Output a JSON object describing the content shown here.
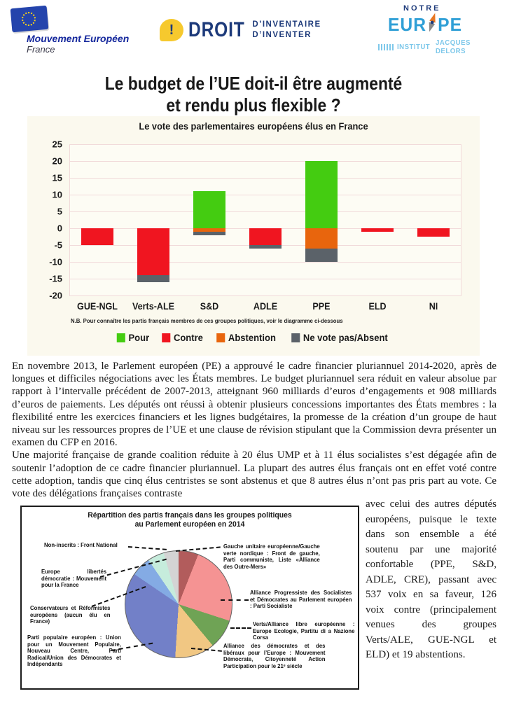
{
  "header": {
    "left_logo": {
      "name": "Mouvement Européen",
      "country": "France"
    },
    "center_logo": {
      "bang": "!",
      "word": "DROIT",
      "sub1": "D’INVENTAIRE",
      "sub2": "D’INVENTER"
    },
    "right_logo": {
      "top": "NOTRE",
      "main_left": "EUR",
      "main_right": "PE",
      "institute": "INSTITUT",
      "institute2": "JACQUES DELORS"
    }
  },
  "title": {
    "line1": "Le budget de l’UE doit-il être augmenté",
    "line2": "et rendu plus flexible ?"
  },
  "chart_data": [
    {
      "type": "bar",
      "title": "Le vote des parlementaires européens élus en France",
      "categories": [
        "GUE-NGL",
        "Verts-ALE",
        "S&D",
        "ADLE",
        "PPE",
        "ELD",
        "NI"
      ],
      "series": [
        {
          "name": "Pour",
          "color": "#44cc11",
          "values": [
            0,
            0,
            11,
            0,
            20,
            0,
            0
          ]
        },
        {
          "name": "Contre",
          "color": "#f01520",
          "values": [
            -5,
            -14,
            0,
            -5,
            0,
            -1,
            -2.5
          ]
        },
        {
          "name": "Abstention",
          "color": "#e8650d",
          "values": [
            0,
            0,
            -1,
            0,
            -6,
            0,
            0
          ]
        },
        {
          "name": "Ne vote pas/Absent",
          "color": "#5b6269",
          "values": [
            0,
            -2,
            -1,
            -1,
            -4,
            0,
            0
          ]
        }
      ],
      "ylim": [
        -20,
        25
      ],
      "ytick_step": 5,
      "grid": true,
      "legend_position": "bottom",
      "note": "N.B. Pour connaître les partis français membres de ces groupes politiques, voir le diagramme ci-dessous"
    },
    {
      "type": "pie",
      "title_line1": "Répartition des partis français dans les groupes politiques",
      "title_line2": "au Parlement européen en 2014",
      "slices": [
        {
          "label": "Gauche unitaire européenne/Gauche verte nordique : Front de gauche, Parti communiste, Liste «Alliance des Outre-Mers»",
          "value": 6,
          "color": "#b25c5c"
        },
        {
          "label": "Alliance Progressiste des Socialistes et Démocrates au Parlement européen : Parti Socialiste",
          "value": 24,
          "color": "#f59393"
        },
        {
          "label": "Verts/Alliance libre européenne : Europe Ecologie, Partitu di a Nazione Corsa",
          "value": 9,
          "color": "#6fa355"
        },
        {
          "label": "Alliance des démocrates et des libéraux pour l’Europe : Mouvement Démocrate, Citoyenneté Action Participation pour le 21ᵉ siècle",
          "value": 12,
          "color": "#f1c783"
        },
        {
          "label": "Parti populaire européen : Union pour un Mouvement Populaire, Nouveau Centre, Parti Radical/Union des Démocrates et Indépendants",
          "value": 33.5,
          "color": "#7280c8"
        },
        {
          "label": "Conservateurs et Réformistes européens (aucun élu en France)",
          "value": 6,
          "color": "#84abe4"
        },
        {
          "label": "Europe libertés démocratie : Mouvement pour la France",
          "value": 5,
          "color": "#c6ecdc"
        },
        {
          "label": "Non-inscrits : Front National",
          "value": 4.5,
          "color": "#d4d4d4"
        }
      ]
    }
  ],
  "paragraphs": {
    "p1": "En novembre 2013, le Parlement européen (PE) a approuvé le cadre financier pluriannuel 2014-2020, après de longues et difficiles négociations avec les États membres. Le budget pluriannuel sera réduit en valeur absolue par rapport à l’intervalle précédent de 2007-2013, atteignant 960 milliards d’euros d’engagements et 908 milliards d’euros de paiements. Les députés ont réussi à obtenir plusieurs concessions importantes des États membres : la flexibilité entre les exercices financiers et les lignes budgétaires, la promesse de la création d’un groupe de haut niveau sur les ressources propres de l’UE et une clause de révision stipulant que la Commission devra présenter un examen du CFP en 2016.",
    "p2": "Une majorité française de grande coalition réduite à 20 élus UMP et à 11 élus socialistes s’est dégagée afin de soutenir l’adoption de ce cadre financier pluriannuel. La plupart des autres élus français ont en effet voté contre cette adoption, tandis que cinq élus centristes se sont abstenus et que 8 autres élus n’ont pas pris part au vote. Ce vote des délégations françaises contraste",
    "p3": "avec celui des autres députés européens, puisque le texte dans son ensemble a été soutenu par une majorité confortable (PPE, S&D, ADLE, CRE), passant avec 537 voix en sa faveur, 126 voix contre (principalement venues des groupes Verts/ALE, GUE-NGL et ELD) et 19 abstentions."
  }
}
